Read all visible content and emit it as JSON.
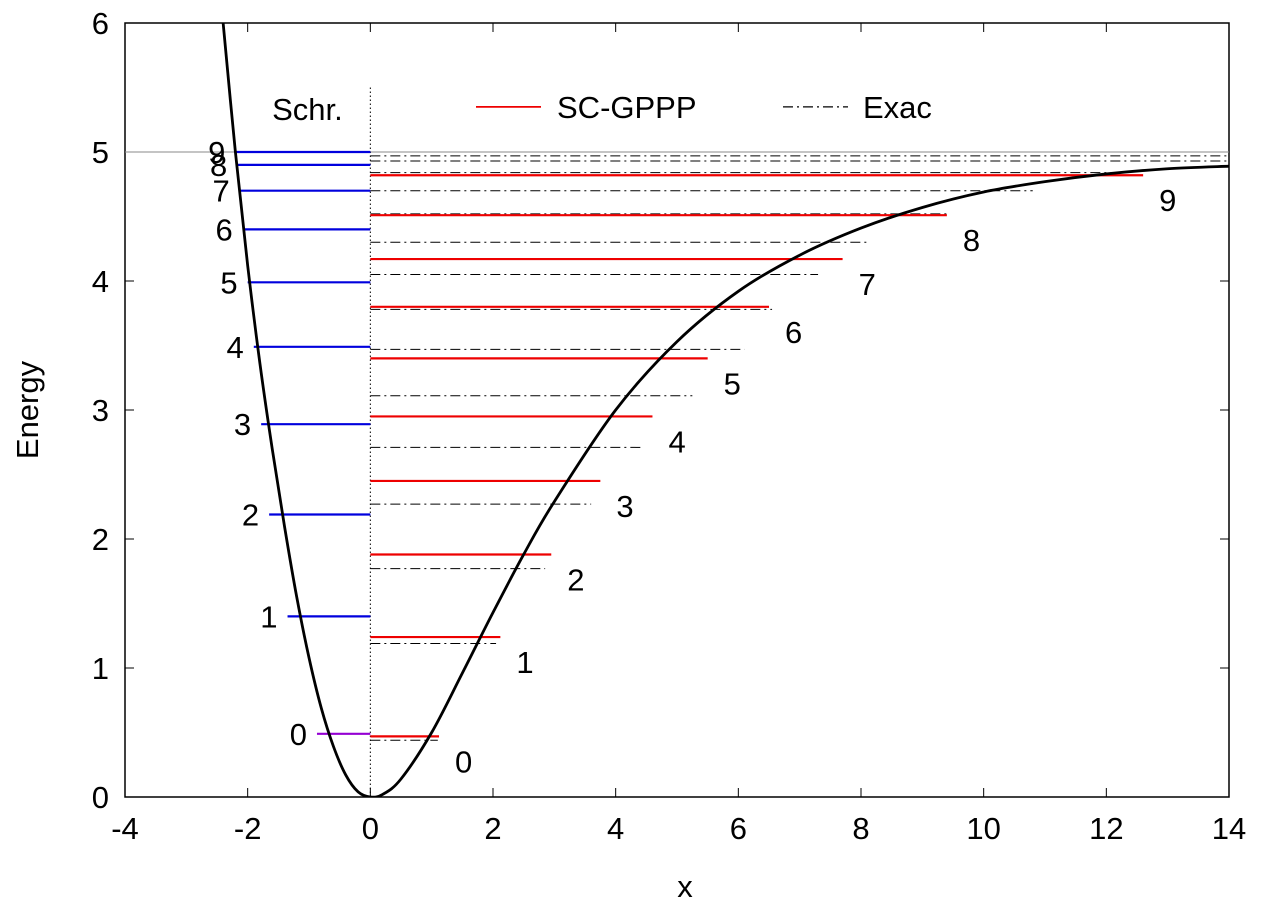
{
  "chart_data": {
    "type": "line",
    "xlabel": "x",
    "ylabel": "Energy",
    "xlim": [
      -4,
      14
    ],
    "ylim": [
      0,
      6
    ],
    "xticks": [
      -4,
      -2,
      0,
      2,
      4,
      6,
      8,
      10,
      12,
      14
    ],
    "yticks": [
      0,
      1,
      2,
      3,
      4,
      5,
      6
    ],
    "grid": false,
    "legend_placement": "top",
    "section_label": "Schr.",
    "dissociation_energy": 5,
    "colors": {
      "schr": "#0000dd",
      "schr_ground": "#9400d3",
      "scgppp": "#ee0000",
      "exact": "#000000",
      "curve": "#000000"
    },
    "series": [
      {
        "name": "SC-GPPP",
        "style": "solid red horizontal segments",
        "levels": [
          {
            "n": 0,
            "energy": 0.47,
            "x_end": 1.12
          },
          {
            "n": 1,
            "energy": 1.24,
            "x_end": 2.12
          },
          {
            "n": 2,
            "energy": 1.88,
            "x_end": 2.95
          },
          {
            "n": 3,
            "energy": 2.45,
            "x_end": 3.75
          },
          {
            "n": 4,
            "energy": 2.95,
            "x_end": 4.6
          },
          {
            "n": 5,
            "energy": 3.4,
            "x_end": 5.5
          },
          {
            "n": 6,
            "energy": 3.8,
            "x_end": 6.5
          },
          {
            "n": 7,
            "energy": 4.17,
            "x_end": 7.7
          },
          {
            "n": 8,
            "energy": 4.51,
            "x_end": 9.4
          },
          {
            "n": 9,
            "energy": 4.82,
            "x_end": 12.6
          }
        ]
      },
      {
        "name": "Exac",
        "style": "dash-dot black horizontal segments",
        "levels": [
          {
            "energy": 0.44,
            "x_end": 1.1
          },
          {
            "energy": 1.19,
            "x_end": 2.05
          },
          {
            "energy": 1.77,
            "x_end": 2.85
          },
          {
            "energy": 2.27,
            "x_end": 3.6
          },
          {
            "energy": 2.71,
            "x_end": 4.45
          },
          {
            "energy": 3.11,
            "x_end": 5.25
          },
          {
            "energy": 3.47,
            "x_end": 6.1
          },
          {
            "energy": 3.78,
            "x_end": 6.55
          },
          {
            "energy": 4.05,
            "x_end": 7.3
          },
          {
            "energy": 4.3,
            "x_end": 8.1
          },
          {
            "energy": 4.52,
            "x_end": 9.4
          },
          {
            "energy": 4.7,
            "x_end": 10.8
          },
          {
            "energy": 4.84,
            "x_end": 12.3
          },
          {
            "energy": 4.93,
            "x_end": 14
          },
          {
            "energy": 4.97,
            "x_end": 14
          }
        ]
      },
      {
        "style": "solid blue horizontal segments (left of x=0)",
        "levels": [
          {
            "n": 0,
            "energy": 0.49,
            "x_start": -0.87
          },
          {
            "n": 1,
            "energy": 1.4,
            "x_start": -1.35
          },
          {
            "n": 2,
            "energy": 2.19,
            "x_start": -1.65
          },
          {
            "n": 3,
            "energy": 2.89,
            "x_start": -1.78
          },
          {
            "n": 4,
            "energy": 3.49,
            "x_start": -1.9
          },
          {
            "n": 5,
            "energy": 3.99,
            "x_start": -2.0
          },
          {
            "n": 6,
            "energy": 4.4,
            "x_start": -2.08
          },
          {
            "n": 7,
            "energy": 4.7,
            "x_start": -2.13
          },
          {
            "n": 8,
            "energy": 4.9,
            "x_start": -2.17
          },
          {
            "n": 9,
            "energy": 5.0,
            "x_start": -2.2
          }
        ]
      },
      {
        "style": "solid black curve",
        "x": [
          -2.4,
          -2.2,
          -2.0,
          -1.8,
          -1.6,
          -1.4,
          -1.2,
          -1.0,
          -0.8,
          -0.6,
          -0.4,
          -0.2,
          0,
          0.2,
          0.5,
          1.0,
          1.5,
          2.0,
          2.5,
          3.0,
          4.0,
          5.0,
          6.0,
          7.0,
          8.0,
          9.0,
          10.0,
          11.0,
          12.0,
          13.0,
          14.0
        ],
        "y": [
          6.0,
          5.0,
          4.12,
          3.36,
          2.7,
          2.1,
          1.55,
          1.08,
          0.69,
          0.39,
          0.17,
          0.04,
          0.0,
          0.02,
          0.14,
          0.5,
          0.96,
          1.43,
          1.88,
          2.29,
          3.0,
          3.53,
          3.92,
          4.2,
          4.41,
          4.57,
          4.69,
          4.77,
          4.83,
          4.87,
          4.89
        ]
      }
    ]
  }
}
